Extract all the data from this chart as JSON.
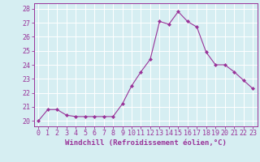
{
  "x": [
    0,
    1,
    2,
    3,
    4,
    5,
    6,
    7,
    8,
    9,
    10,
    11,
    12,
    13,
    14,
    15,
    16,
    17,
    18,
    19,
    20,
    21,
    22,
    23
  ],
  "y": [
    20.0,
    20.8,
    20.8,
    20.4,
    20.3,
    20.3,
    20.3,
    20.3,
    20.3,
    21.2,
    22.5,
    23.5,
    24.4,
    27.1,
    26.9,
    27.8,
    27.1,
    26.7,
    24.9,
    24.0,
    24.0,
    23.5,
    22.9,
    22.3
  ],
  "line_color": "#993399",
  "marker": "D",
  "marker_size": 2,
  "bg_color": "#d6eef2",
  "grid_color": "#ffffff",
  "xlabel": "Windchill (Refroidissement éolien,°C)",
  "xlabel_fontsize": 6.5,
  "ylabel_ticks": [
    20,
    21,
    22,
    23,
    24,
    25,
    26,
    27,
    28
  ],
  "ylim": [
    19.6,
    28.4
  ],
  "xlim": [
    -0.5,
    23.5
  ],
  "tick_fontsize": 6,
  "tick_color": "#993399"
}
